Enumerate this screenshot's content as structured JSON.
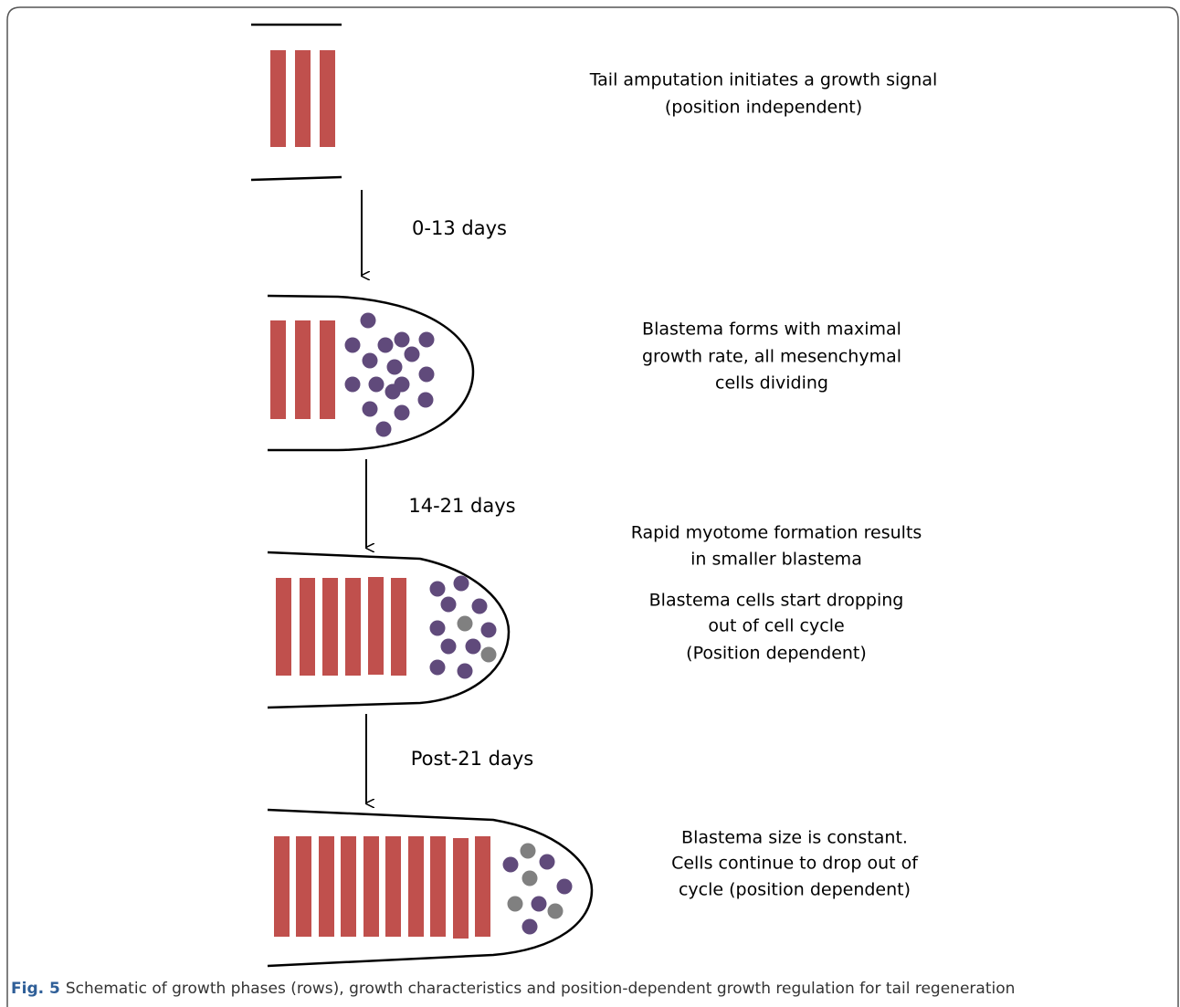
{
  "stages": [
    {
      "paragraphs": [
        [
          "Tail amputation initiates a growth signal",
          "(position independent)"
        ]
      ]
    },
    {
      "paragraphs": [
        [
          "Blastema forms with maximal",
          "growth rate, all mesenchymal",
          "cells dividing"
        ]
      ]
    },
    {
      "paragraphs": [
        [
          "Rapid myotome formation results",
          "in smaller blastema"
        ],
        [
          "Blastema cells start dropping",
          "out of cell cycle",
          "(Position dependent)"
        ]
      ]
    },
    {
      "paragraphs": [
        [
          "Blastema size is constant.",
          "Cells continue to drop out of",
          "cycle (position dependent)"
        ]
      ]
    }
  ],
  "transitions": [
    {
      "label": "0-13 days"
    },
    {
      "label": "14-21 days"
    },
    {
      "label": "Post-21 days"
    }
  ],
  "caption": {
    "label": "Fig. 5",
    "text": "Schematic of growth phases (rows), growth characteristics and position-dependent growth regulation for tail regeneration"
  }
}
